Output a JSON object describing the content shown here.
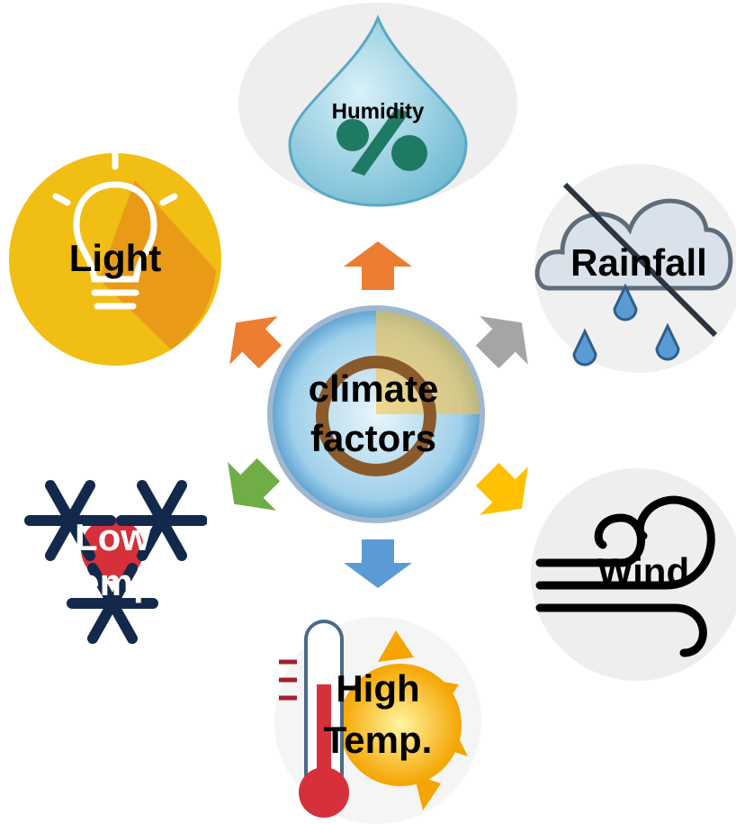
{
  "center": {
    "lines": [
      "climate",
      "factors"
    ]
  },
  "nodes": [
    {
      "lines": [
        "Humidity"
      ]
    },
    {
      "lines": [
        "Light"
      ]
    },
    {
      "lines": [
        "Rainfall"
      ]
    },
    {
      "lines": [
        "Low",
        "Temp."
      ]
    },
    {
      "lines": [
        "Wind"
      ]
    },
    {
      "lines": [
        "High",
        "Temp."
      ]
    }
  ]
}
